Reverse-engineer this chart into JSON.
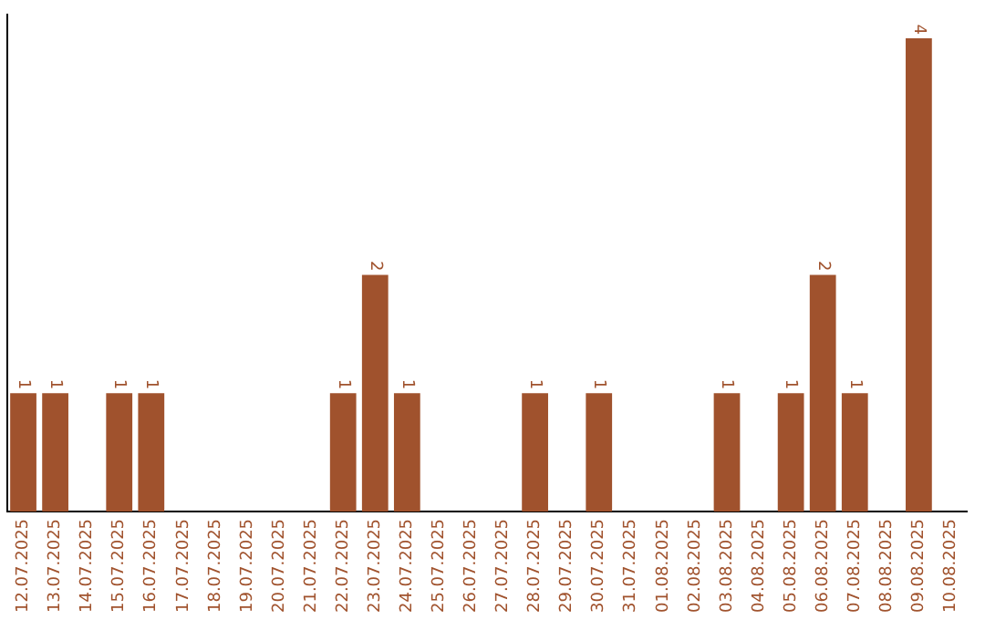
{
  "chart_data": {
    "type": "bar",
    "categories": [
      "12.07.2025",
      "13.07.2025",
      "14.07.2025",
      "15.07.2025",
      "16.07.2025",
      "17.07.2025",
      "18.07.2025",
      "19.07.2025",
      "20.07.2025",
      "21.07.2025",
      "22.07.2025",
      "23.07.2025",
      "24.07.2025",
      "25.07.2025",
      "26.07.2025",
      "27.07.2025",
      "28.07.2025",
      "29.07.2025",
      "30.07.2025",
      "31.07.2025",
      "01.08.2025",
      "02.08.2025",
      "03.08.2025",
      "04.08.2025",
      "05.08.2025",
      "06.08.2025",
      "07.08.2025",
      "08.08.2025",
      "09.08.2025",
      "10.08.2025"
    ],
    "values": [
      1,
      1,
      0,
      1,
      1,
      0,
      0,
      0,
      0,
      0,
      1,
      2,
      1,
      0,
      0,
      0,
      1,
      0,
      1,
      0,
      0,
      0,
      1,
      0,
      1,
      2,
      1,
      0,
      4,
      0
    ],
    "value_labels": [
      "1",
      "1",
      null,
      "1",
      "1",
      null,
      null,
      null,
      null,
      null,
      "1",
      "2",
      "1",
      null,
      null,
      null,
      "1",
      null,
      "1",
      null,
      null,
      null,
      "1",
      null,
      "1",
      "2",
      "1",
      null,
      "4",
      null
    ],
    "color": "#a0522d",
    "ylim": [
      0,
      4.2
    ],
    "tick_labels": "x",
    "grid": false,
    "legend": false
  }
}
